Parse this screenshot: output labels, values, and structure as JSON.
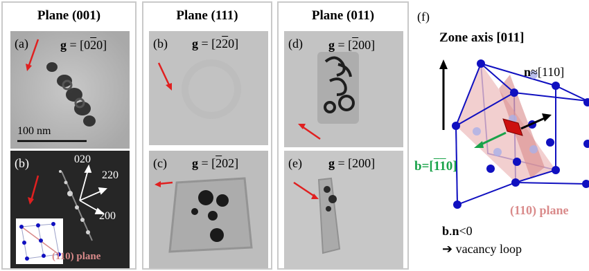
{
  "panels": [
    {
      "title": "Plane (001)"
    },
    {
      "title": "Plane (111)"
    },
    {
      "title": "Plane (011)"
    }
  ],
  "images": {
    "a": {
      "label": "(a)",
      "g_pre": " = [0",
      "g_bar": "2",
      "g_post": "0]",
      "scalebar": "100 nm"
    },
    "b1": {
      "label": "(b)",
      "dirs": [
        "020",
        "220",
        "200"
      ],
      "inset_label": "(110) plane"
    },
    "b2": {
      "label": "(b)",
      "g_pre": " = [2",
      "g_bar": "2",
      "g_post": "0]"
    },
    "c": {
      "label": "(c)",
      "g_pre": " = [",
      "g_bar": "2",
      "g_post": "02]"
    },
    "d": {
      "label": "(d)",
      "g_pre": " = [",
      "g_bar": "2",
      "g_post": "00]"
    },
    "e": {
      "label": "(e)",
      "g_pre": " = [200]"
    }
  },
  "g_symbol": "g",
  "schematic": {
    "label": "(f)",
    "zone_axis": "Zone axis [011]",
    "n_bold": "n",
    "n_rest": "≈[110]",
    "b_pre": "b=[",
    "b_bar1": "1",
    "b_bar2": "1",
    "b_post": "0]",
    "plane": "(110) plane",
    "cond_b": "b",
    "cond_dot": ".",
    "cond_n": "n",
    "cond_rest": "<0",
    "result": "➔ vacancy loop"
  },
  "colors": {
    "arrow_red": "#e02020",
    "cube_blue": "#1010c0",
    "plane_pink": "#d98a8a",
    "b_green": "#1aa34a"
  }
}
